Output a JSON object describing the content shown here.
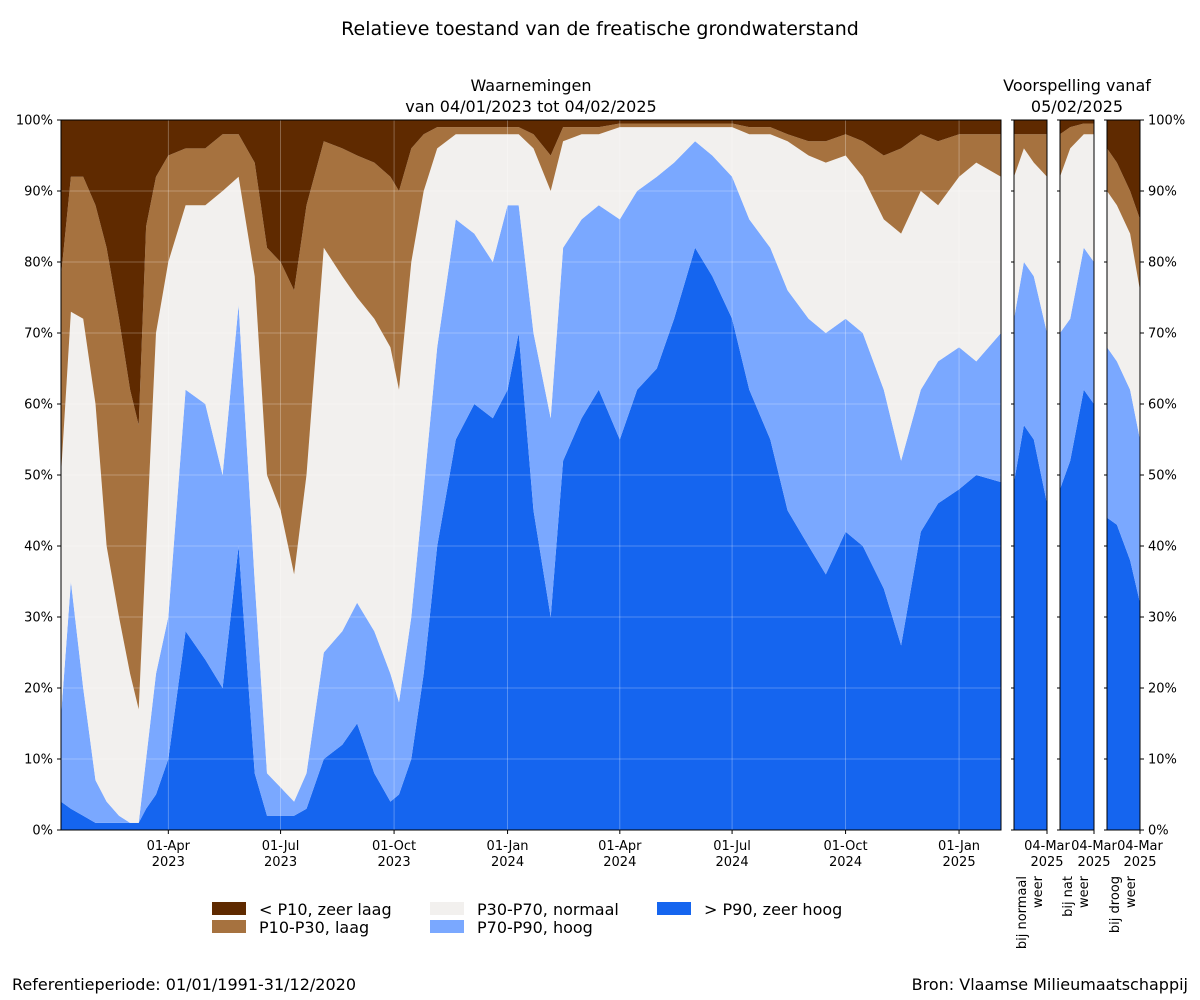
{
  "title": "Relatieve toestand van de freatische grondwaterstand",
  "observations_title_line1": "Waarnemingen",
  "observations_title_line2": "van 04/01/2023 tot 04/02/2025",
  "forecast_title_line1": "Voorspelling vanaf",
  "forecast_title_line2": "05/02/2025",
  "reference_period": "Referentieperiode: 01/01/1991-31/12/2020",
  "source": "Bron: Vlaamse Milieumaatschappij",
  "colors": {
    "zeer_laag": "#5f2a00",
    "laag": "#a6723f",
    "normaal": "#f2f0ee",
    "hoog": "#7aa8ff",
    "zeer_hoog": "#1565ef"
  },
  "chart_data": {
    "type": "area",
    "stacked": true,
    "title": "Relatieve toestand van de freatische grondwaterstand",
    "grid": true,
    "legend_position": "bottom",
    "y_tick_labels": [
      "0%",
      "10%",
      "20%",
      "30%",
      "40%",
      "50%",
      "60%",
      "70%",
      "80%",
      "90%",
      "100%"
    ],
    "ylim": [
      0,
      100
    ],
    "categories_legend": [
      {
        "key": "zeer_laag",
        "label": "< P10, zeer laag"
      },
      {
        "key": "laag",
        "label": "P10-P30, laag"
      },
      {
        "key": "normaal",
        "label": "P30-P70, normaal"
      },
      {
        "key": "hoog",
        "label": "P70-P90, hoog"
      },
      {
        "key": "zeer_hoog",
        "label": "> P90, zeer hoog"
      }
    ],
    "observations": {
      "x_range": [
        "2023-01-04",
        "2025-02-04"
      ],
      "x_tick_labels": [
        {
          "date": "2023-04-01",
          "line1": "01-Apr",
          "line2": "2023"
        },
        {
          "date": "2023-07-01",
          "line1": "01-Jul",
          "line2": "2023"
        },
        {
          "date": "2023-10-01",
          "line1": "01-Oct",
          "line2": "2023"
        },
        {
          "date": "2024-01-01",
          "line1": "01-Jan",
          "line2": "2024"
        },
        {
          "date": "2024-04-01",
          "line1": "01-Apr",
          "line2": "2024"
        },
        {
          "date": "2024-07-01",
          "line1": "01-Jul",
          "line2": "2024"
        },
        {
          "date": "2024-10-01",
          "line1": "01-Oct",
          "line2": "2024"
        },
        {
          "date": "2025-01-01",
          "line1": "01-Jan",
          "line2": "2025"
        }
      ],
      "boundaries_note": "cumulative % from bottom: b1 = top of zeer hoog, b2 = top of hoog, b3 = top of normaal, b4 = top of laag",
      "points": [
        {
          "date": "2023-01-04",
          "b1": 4,
          "b2": 16,
          "b3": 50,
          "b4": 78
        },
        {
          "date": "2023-01-12",
          "b1": 3,
          "b2": 35,
          "b3": 73,
          "b4": 92
        },
        {
          "date": "2023-01-22",
          "b1": 2,
          "b2": 20,
          "b3": 72,
          "b4": 92
        },
        {
          "date": "2023-02-01",
          "b1": 1,
          "b2": 7,
          "b3": 60,
          "b4": 88
        },
        {
          "date": "2023-02-10",
          "b1": 1,
          "b2": 4,
          "b3": 40,
          "b4": 82
        },
        {
          "date": "2023-02-20",
          "b1": 1,
          "b2": 2,
          "b3": 30,
          "b4": 72
        },
        {
          "date": "2023-03-01",
          "b1": 1,
          "b2": 1,
          "b3": 22,
          "b4": 62
        },
        {
          "date": "2023-03-08",
          "b1": 1,
          "b2": 1,
          "b3": 17,
          "b4": 57
        },
        {
          "date": "2023-03-14",
          "b1": 3,
          "b2": 10,
          "b3": 40,
          "b4": 85
        },
        {
          "date": "2023-03-22",
          "b1": 5,
          "b2": 22,
          "b3": 70,
          "b4": 92
        },
        {
          "date": "2023-04-01",
          "b1": 10,
          "b2": 30,
          "b3": 80,
          "b4": 95
        },
        {
          "date": "2023-04-15",
          "b1": 28,
          "b2": 62,
          "b3": 88,
          "b4": 96
        },
        {
          "date": "2023-05-01",
          "b1": 24,
          "b2": 60,
          "b3": 88,
          "b4": 96
        },
        {
          "date": "2023-05-15",
          "b1": 20,
          "b2": 50,
          "b3": 90,
          "b4": 98
        },
        {
          "date": "2023-05-28",
          "b1": 40,
          "b2": 74,
          "b3": 92,
          "b4": 98
        },
        {
          "date": "2023-06-10",
          "b1": 8,
          "b2": 35,
          "b3": 78,
          "b4": 94
        },
        {
          "date": "2023-06-20",
          "b1": 2,
          "b2": 8,
          "b3": 50,
          "b4": 82
        },
        {
          "date": "2023-07-01",
          "b1": 2,
          "b2": 6,
          "b3": 45,
          "b4": 80
        },
        {
          "date": "2023-07-12",
          "b1": 2,
          "b2": 4,
          "b3": 36,
          "b4": 76
        },
        {
          "date": "2023-07-22",
          "b1": 3,
          "b2": 8,
          "b3": 50,
          "b4": 88
        },
        {
          "date": "2023-08-05",
          "b1": 10,
          "b2": 25,
          "b3": 82,
          "b4": 97
        },
        {
          "date": "2023-08-20",
          "b1": 12,
          "b2": 28,
          "b3": 78,
          "b4": 96
        },
        {
          "date": "2023-09-01",
          "b1": 15,
          "b2": 32,
          "b3": 75,
          "b4": 95
        },
        {
          "date": "2023-09-15",
          "b1": 8,
          "b2": 28,
          "b3": 72,
          "b4": 94
        },
        {
          "date": "2023-09-28",
          "b1": 4,
          "b2": 22,
          "b3": 68,
          "b4": 92
        },
        {
          "date": "2023-10-05",
          "b1": 5,
          "b2": 18,
          "b3": 62,
          "b4": 90
        },
        {
          "date": "2023-10-15",
          "b1": 10,
          "b2": 30,
          "b3": 80,
          "b4": 96
        },
        {
          "date": "2023-10-25",
          "b1": 22,
          "b2": 48,
          "b3": 90,
          "b4": 98
        },
        {
          "date": "2023-11-05",
          "b1": 40,
          "b2": 68,
          "b3": 96,
          "b4": 99
        },
        {
          "date": "2023-11-20",
          "b1": 55,
          "b2": 86,
          "b3": 98,
          "b4": 99
        },
        {
          "date": "2023-12-05",
          "b1": 60,
          "b2": 84,
          "b3": 98,
          "b4": 99
        },
        {
          "date": "2023-12-20",
          "b1": 58,
          "b2": 80,
          "b3": 98,
          "b4": 99
        },
        {
          "date": "2024-01-01",
          "b1": 62,
          "b2": 88,
          "b3": 98,
          "b4": 99
        },
        {
          "date": "2024-01-10",
          "b1": 70,
          "b2": 88,
          "b3": 98,
          "b4": 99
        },
        {
          "date": "2024-01-22",
          "b1": 45,
          "b2": 70,
          "b3": 96,
          "b4": 98
        },
        {
          "date": "2024-02-05",
          "b1": 30,
          "b2": 58,
          "b3": 90,
          "b4": 95
        },
        {
          "date": "2024-02-15",
          "b1": 52,
          "b2": 82,
          "b3": 97,
          "b4": 99
        },
        {
          "date": "2024-03-01",
          "b1": 58,
          "b2": 86,
          "b3": 98,
          "b4": 99
        },
        {
          "date": "2024-03-15",
          "b1": 62,
          "b2": 88,
          "b3": 98,
          "b4": 99
        },
        {
          "date": "2024-04-01",
          "b1": 55,
          "b2": 86,
          "b3": 99,
          "b4": 99.5
        },
        {
          "date": "2024-04-15",
          "b1": 62,
          "b2": 90,
          "b3": 99,
          "b4": 99.5
        },
        {
          "date": "2024-05-01",
          "b1": 65,
          "b2": 92,
          "b3": 99,
          "b4": 99.5
        },
        {
          "date": "2024-05-15",
          "b1": 72,
          "b2": 94,
          "b3": 99,
          "b4": 99.5
        },
        {
          "date": "2024-06-01",
          "b1": 82,
          "b2": 97,
          "b3": 99,
          "b4": 99.5
        },
        {
          "date": "2024-06-15",
          "b1": 78,
          "b2": 95,
          "b3": 99,
          "b4": 99.5
        },
        {
          "date": "2024-07-01",
          "b1": 72,
          "b2": 92,
          "b3": 99,
          "b4": 99.5
        },
        {
          "date": "2024-07-15",
          "b1": 62,
          "b2": 86,
          "b3": 98,
          "b4": 99
        },
        {
          "date": "2024-08-01",
          "b1": 55,
          "b2": 82,
          "b3": 98,
          "b4": 99
        },
        {
          "date": "2024-08-15",
          "b1": 45,
          "b2": 76,
          "b3": 97,
          "b4": 98
        },
        {
          "date": "2024-09-01",
          "b1": 40,
          "b2": 72,
          "b3": 95,
          "b4": 97
        },
        {
          "date": "2024-09-15",
          "b1": 36,
          "b2": 70,
          "b3": 94,
          "b4": 97
        },
        {
          "date": "2024-10-01",
          "b1": 42,
          "b2": 72,
          "b3": 95,
          "b4": 98
        },
        {
          "date": "2024-10-15",
          "b1": 40,
          "b2": 70,
          "b3": 92,
          "b4": 97
        },
        {
          "date": "2024-11-01",
          "b1": 34,
          "b2": 62,
          "b3": 86,
          "b4": 95
        },
        {
          "date": "2024-11-15",
          "b1": 26,
          "b2": 52,
          "b3": 84,
          "b4": 96
        },
        {
          "date": "2024-12-01",
          "b1": 42,
          "b2": 62,
          "b3": 90,
          "b4": 98
        },
        {
          "date": "2024-12-15",
          "b1": 46,
          "b2": 66,
          "b3": 88,
          "b4": 97
        },
        {
          "date": "2025-01-01",
          "b1": 48,
          "b2": 68,
          "b3": 92,
          "b4": 98
        },
        {
          "date": "2025-01-15",
          "b1": 50,
          "b2": 66,
          "b3": 94,
          "b4": 98
        },
        {
          "date": "2025-02-04",
          "b1": 49,
          "b2": 70,
          "b3": 92,
          "b4": 98
        }
      ]
    },
    "forecasts": [
      {
        "label_line1": "bij normaal",
        "label_line2": "weer",
        "x_tick_line1": "04-Mar",
        "x_tick_line2": "2025",
        "points": [
          {
            "t": 0,
            "b1": 49,
            "b2": 72,
            "b3": 92,
            "b4": 98
          },
          {
            "t": 0.3,
            "b1": 57,
            "b2": 80,
            "b3": 96,
            "b4": 98
          },
          {
            "t": 0.6,
            "b1": 55,
            "b2": 78,
            "b3": 94,
            "b4": 98
          },
          {
            "t": 1,
            "b1": 46,
            "b2": 70,
            "b3": 92,
            "b4": 98
          }
        ]
      },
      {
        "label_line1": "bij nat",
        "label_line2": "weer",
        "x_tick_line1": "04-Mar",
        "x_tick_line2": "2025",
        "points": [
          {
            "t": 0,
            "b1": 48,
            "b2": 70,
            "b3": 92,
            "b4": 98
          },
          {
            "t": 0.3,
            "b1": 52,
            "b2": 72,
            "b3": 96,
            "b4": 99
          },
          {
            "t": 0.7,
            "b1": 62,
            "b2": 82,
            "b3": 98,
            "b4": 99.5
          },
          {
            "t": 1,
            "b1": 60,
            "b2": 80,
            "b3": 98,
            "b4": 99.5
          }
        ]
      },
      {
        "label_line1": "bij droog",
        "label_line2": "weer",
        "x_tick_line1": "04-Mar",
        "x_tick_line2": "2025",
        "points": [
          {
            "t": 0,
            "b1": 44,
            "b2": 68,
            "b3": 90,
            "b4": 96
          },
          {
            "t": 0.3,
            "b1": 43,
            "b2": 66,
            "b3": 88,
            "b4": 94
          },
          {
            "t": 0.7,
            "b1": 38,
            "b2": 62,
            "b3": 84,
            "b4": 90
          },
          {
            "t": 1,
            "b1": 32,
            "b2": 55,
            "b3": 76,
            "b4": 86
          }
        ]
      }
    ]
  }
}
